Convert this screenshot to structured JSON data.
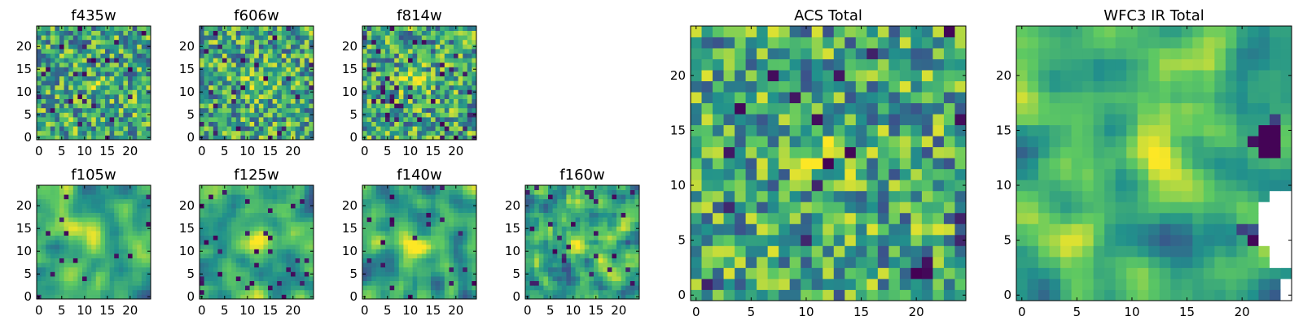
{
  "chart_data": {
    "type": "heatmap",
    "colormap": {
      "name": "viridis",
      "colors": [
        "#440154",
        "#3b528b",
        "#21918c",
        "#5ec962",
        "#fde725"
      ],
      "missing_color": "#ffffff"
    },
    "grid_size": 25,
    "panels": [
      {
        "name": "f435w",
        "title": "f435w",
        "xticks": [
          "0",
          "5",
          "10",
          "15",
          "20"
        ],
        "yticks": [
          "0",
          "5",
          "10",
          "15",
          "20"
        ],
        "seed": 11,
        "blob": {
          "x": 12,
          "y": 12,
          "strength": 0.1
        },
        "smooth": 0,
        "dark_frac": 0.04
      },
      {
        "name": "f606w",
        "title": "f606w",
        "xticks": [
          "0",
          "5",
          "10",
          "15",
          "20"
        ],
        "yticks": [
          "0",
          "5",
          "10",
          "15",
          "20"
        ],
        "seed": 23,
        "blob": {
          "x": 13,
          "y": 12,
          "strength": 0.25
        },
        "smooth": 0,
        "dark_frac": 0.04
      },
      {
        "name": "f814w",
        "title": "f814w",
        "xticks": [
          "0",
          "5",
          "10",
          "15",
          "20"
        ],
        "yticks": [
          "0",
          "5",
          "10",
          "15",
          "20"
        ],
        "seed": 37,
        "blob": {
          "x": 11,
          "y": 12,
          "strength": 0.3
        },
        "smooth": 0,
        "dark_frac": 0.06
      },
      {
        "name": "f105w",
        "title": "f105w",
        "xticks": [
          "0",
          "5",
          "10",
          "15",
          "20"
        ],
        "yticks": [
          "0",
          "5",
          "10",
          "15",
          "20"
        ],
        "seed": 41,
        "blob": {
          "x": 12,
          "y": 13,
          "strength": 0.4
        },
        "smooth": 2,
        "dark_frac": 0.03
      },
      {
        "name": "f125w",
        "title": "f125w",
        "xticks": [
          "0",
          "5",
          "10",
          "15",
          "20"
        ],
        "yticks": [
          "0",
          "5",
          "10",
          "15",
          "20"
        ],
        "seed": 53,
        "blob": {
          "x": 13,
          "y": 12,
          "strength": 0.35
        },
        "smooth": 2,
        "dark_frac": 0.04
      },
      {
        "name": "f140w",
        "title": "f140w",
        "xticks": [
          "0",
          "5",
          "10",
          "15",
          "20"
        ],
        "yticks": [
          "0",
          "5",
          "10",
          "15",
          "20"
        ],
        "seed": 67,
        "blob": {
          "x": 11,
          "y": 11,
          "strength": 0.3
        },
        "smooth": 2,
        "dark_frac": 0.02
      },
      {
        "name": "f160w",
        "title": "f160w",
        "xticks": [
          "0",
          "5",
          "10",
          "15",
          "20"
        ],
        "yticks": [
          "0",
          "5",
          "10",
          "15",
          "20"
        ],
        "seed": 79,
        "blob": {
          "x": 12,
          "y": 12,
          "strength": 0.35
        },
        "smooth": 1,
        "dark_frac": 0.04
      },
      {
        "name": "acs-total",
        "title": "ACS Total",
        "xticks": [
          "0",
          "5",
          "10",
          "15",
          "20"
        ],
        "yticks": [
          "0",
          "5",
          "10",
          "15",
          "20"
        ],
        "seed": 97,
        "blob": {
          "x": 12,
          "y": 13,
          "strength": 0.2
        },
        "smooth": 0,
        "dark_frac": 0.03
      },
      {
        "name": "wfc3-ir-total",
        "title": "WFC3 IR Total",
        "xticks": [
          "0",
          "5",
          "10",
          "15",
          "20"
        ],
        "yticks": [
          "0",
          "5",
          "10",
          "15",
          "20"
        ],
        "seed": 131,
        "blob": {
          "x": 12,
          "y": 12,
          "strength": 0.45
        },
        "smooth": 2,
        "dark_frac": 0.0,
        "has_missing": true
      }
    ]
  }
}
